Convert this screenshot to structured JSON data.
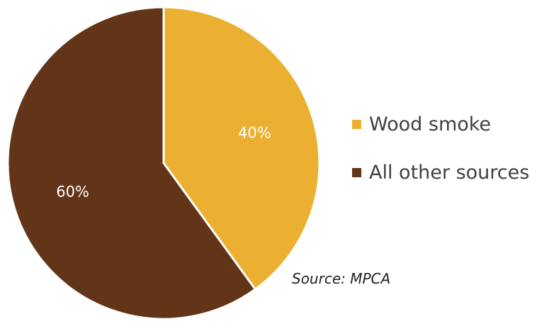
{
  "chart_data": {
    "type": "pie",
    "categories": [
      "Wood smoke",
      "All other sources"
    ],
    "values": [
      40,
      60
    ],
    "data_labels": [
      "40%",
      "60%"
    ],
    "colors": [
      "#EBB031",
      "#623518"
    ],
    "legend_position": "right",
    "start_angle_deg": 0,
    "direction": "clockwise"
  },
  "legend": {
    "items": [
      {
        "label": "Wood smoke",
        "color": "#EBB031"
      },
      {
        "label": "All other sources",
        "color": "#623518"
      }
    ]
  },
  "source": "Source: MPCA"
}
